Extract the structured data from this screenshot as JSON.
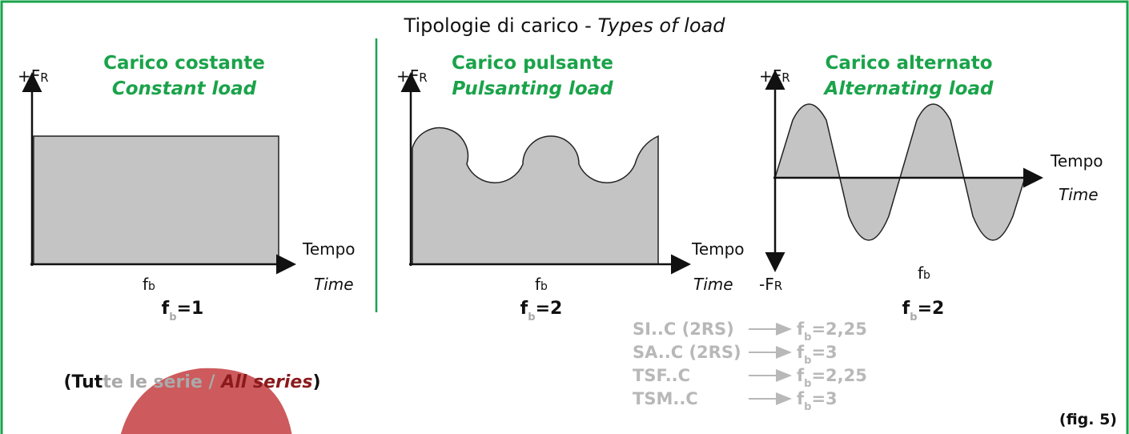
{
  "title": {
    "it": "Tipologie di carico -",
    "en": "Types of load"
  },
  "panels": [
    {
      "heading_it": "Carico costante",
      "heading_en": "Constant load",
      "y_label": {
        "base": "+F",
        "sub": "R"
      },
      "x_label": "Tempo",
      "x_label_en": "Time",
      "axis_label": {
        "base": "f",
        "sub": "b"
      },
      "formula": {
        "base": "f",
        "sub": "b",
        "rest": "=1"
      }
    },
    {
      "heading_it": "Carico pulsante",
      "heading_en": "Pulsanting load",
      "y_label": {
        "base": "+F",
        "sub": "R"
      },
      "x_label": "Tempo",
      "x_label_en": "Time",
      "axis_label": {
        "base": "f",
        "sub": "b"
      },
      "formula": {
        "base": "f",
        "sub": "b",
        "rest": "=2"
      }
    },
    {
      "heading_it": "Carico alternato",
      "heading_en": "Alternating load",
      "y_label": {
        "base": "+F",
        "sub": "R"
      },
      "y_label_neg": {
        "base": "-F",
        "sub": "R"
      },
      "x_label": "Tempo",
      "x_label_en": "Time",
      "axis_label": {
        "base": "f",
        "sub": "b"
      },
      "formula": {
        "base": "f",
        "sub": "b",
        "rest": "=2"
      }
    }
  ],
  "note": {
    "it_bold": "(Tut",
    "it_gray": "te le serie / ",
    "en": "All series",
    "close": ")"
  },
  "rows": [
    {
      "code": "SI..C (2RS)",
      "f": "f",
      "sub": "b",
      "value": "=2,25"
    },
    {
      "code": "SA..C (2RS)",
      "f": "f",
      "sub": "b",
      "value": "=3"
    },
    {
      "code": "TSF..C",
      "f": "f",
      "sub": "b",
      "value": "=2,25"
    },
    {
      "code": "TSM..C",
      "f": "f",
      "sub": "b",
      "value": "=3"
    }
  ],
  "fig": "(fig. 5)"
}
